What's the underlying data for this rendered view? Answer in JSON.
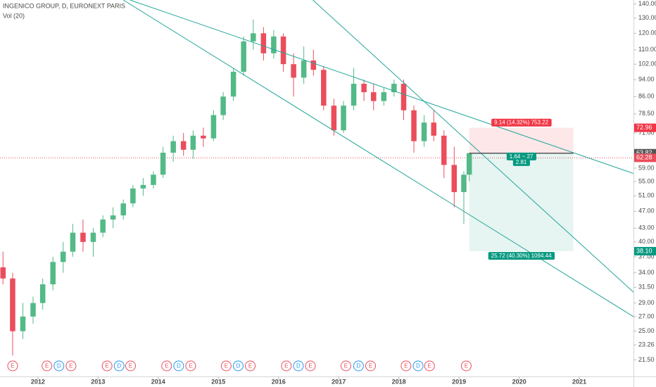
{
  "chart_data": {
    "type": "candlestick",
    "title": "INGENICO GROUP, D, EURONEXT PARIS",
    "subtitle": "Vol (20)",
    "log_scale": true,
    "up_color": "#53b987",
    "down_color": "#eb4d5c",
    "xlim": [
      2011.37,
      2021.9
    ],
    "xticks": [
      2012,
      2013,
      2014,
      2015,
      2016,
      2017,
      2018,
      2019,
      2020,
      2021
    ],
    "ylim": [
      19.7,
      143
    ],
    "yticks": [
      {
        "value": 140,
        "label": "140.00"
      },
      {
        "value": 130,
        "label": "130.00"
      },
      {
        "value": 120,
        "label": "120.00"
      },
      {
        "value": 110,
        "label": "110.00"
      },
      {
        "value": 102,
        "label": "102.00"
      },
      {
        "value": 94,
        "label": "94.00"
      },
      {
        "value": 86,
        "label": "86.00"
      },
      {
        "value": 78.5,
        "label": "78.50"
      },
      {
        "value": 71,
        "label": "71.00"
      },
      {
        "value": 59,
        "label": "59.00"
      },
      {
        "value": 55,
        "label": "55.00"
      },
      {
        "value": 51,
        "label": "51.00"
      },
      {
        "value": 47,
        "label": "47.00"
      },
      {
        "value": 43,
        "label": "43.00"
      },
      {
        "value": 40,
        "label": "40.00"
      },
      {
        "value": 37,
        "label": "37.00"
      },
      {
        "value": 34,
        "label": "34.00"
      },
      {
        "value": 31.5,
        "label": "31.50"
      },
      {
        "value": 29,
        "label": "29.00"
      },
      {
        "value": 27,
        "label": "27.00"
      },
      {
        "value": 25,
        "label": "25.00"
      },
      {
        "value": 23.26,
        "label": "23.26"
      },
      {
        "value": 21.5,
        "label": "21.50"
      }
    ],
    "x": [
      2011.42,
      2011.58,
      2011.75,
      2011.92,
      2012.08,
      2012.25,
      2012.42,
      2012.58,
      2012.75,
      2012.92,
      2013.08,
      2013.25,
      2013.42,
      2013.58,
      2013.75,
      2013.92,
      2014.08,
      2014.25,
      2014.42,
      2014.58,
      2014.75,
      2014.92,
      2015.08,
      2015.25,
      2015.42,
      2015.58,
      2015.75,
      2015.92,
      2016.08,
      2016.25,
      2016.42,
      2016.58,
      2016.75,
      2016.92,
      2017.08,
      2017.25,
      2017.42,
      2017.58,
      2017.75,
      2017.92,
      2018.08,
      2018.25,
      2018.42,
      2018.58,
      2018.75,
      2018.92,
      2019.08,
      2019.17
    ],
    "open": [
      35,
      33,
      25,
      27,
      29,
      32,
      36,
      38,
      42,
      40,
      42,
      45,
      46,
      49,
      53,
      54,
      57,
      64,
      68,
      65,
      70,
      69,
      78,
      86,
      98,
      115,
      120,
      108,
      118,
      102,
      95,
      104,
      99,
      82,
      72,
      82,
      92,
      88,
      84,
      88,
      92,
      80,
      68,
      75,
      70,
      60,
      52,
      57
    ],
    "high": [
      38,
      34,
      29,
      30,
      33,
      37,
      40,
      44,
      45,
      43,
      46,
      48,
      50,
      54,
      56,
      58,
      66,
      70,
      71,
      72,
      73,
      80,
      88,
      100,
      118,
      129,
      124,
      122,
      120,
      108,
      112,
      110,
      101,
      85,
      84,
      100,
      94,
      92,
      90,
      94,
      94,
      82,
      78,
      80,
      72,
      66,
      58,
      64
    ],
    "low": [
      32,
      22,
      24,
      26,
      28,
      31,
      34,
      37,
      38,
      37,
      41,
      43,
      45,
      48,
      51,
      53,
      56,
      61,
      63,
      62,
      66,
      68,
      76,
      84,
      96,
      110,
      104,
      105,
      98,
      86,
      92,
      96,
      80,
      70,
      71,
      80,
      84,
      80,
      82,
      86,
      76,
      64,
      66,
      68,
      56,
      48,
      44,
      55
    ],
    "close": [
      33,
      25,
      27,
      29,
      32,
      36,
      38,
      42,
      40,
      42,
      45,
      46,
      49,
      53,
      54,
      57,
      64,
      68,
      65,
      70,
      69,
      78,
      86,
      98,
      115,
      120,
      108,
      118,
      102,
      95,
      104,
      99,
      82,
      72,
      82,
      92,
      88,
      84,
      88,
      92,
      80,
      68,
      75,
      70,
      60,
      52,
      57,
      63.82
    ],
    "trend_lines": [
      {
        "x": [
          2013.53,
          2022.27
        ],
        "y": [
          143,
          55.1
        ],
        "color": "#26a69a"
      },
      {
        "x": [
          2013.42,
          2022.27
        ],
        "y": [
          143,
          25.1
        ],
        "color": "#26a69a"
      },
      {
        "x": [
          2016.57,
          2022.27
        ],
        "y": [
          143,
          27.6
        ],
        "color": "#26a69a"
      }
    ],
    "last_price": 62.28,
    "position": {
      "x": [
        2019.17,
        2020.9
      ],
      "entry": 63.82,
      "stop": 72.96,
      "target": {
        "value": 38.1,
        "label": "38.10"
      },
      "stop_label": "9.14 (14.32%) 753.22",
      "entry_label": "1.64 ~ 27",
      "entry_sub_label": "2.81",
      "target_label": "25.72 (40.30%) 1094.44"
    },
    "events": [
      {
        "x": 2011.58,
        "label": "E"
      },
      {
        "x": 2012.15,
        "label": "E"
      },
      {
        "x": 2012.35,
        "label": "D"
      },
      {
        "x": 2012.55,
        "label": "E"
      },
      {
        "x": 2013.15,
        "label": "E"
      },
      {
        "x": 2013.35,
        "label": "D"
      },
      {
        "x": 2013.54,
        "label": "E"
      },
      {
        "x": 2014.14,
        "label": "E"
      },
      {
        "x": 2014.34,
        "label": "D"
      },
      {
        "x": 2014.54,
        "label": "E"
      },
      {
        "x": 2015.13,
        "label": "E"
      },
      {
        "x": 2015.33,
        "label": "D"
      },
      {
        "x": 2015.53,
        "label": "E"
      },
      {
        "x": 2016.13,
        "label": "E"
      },
      {
        "x": 2016.33,
        "label": "D"
      },
      {
        "x": 2016.53,
        "label": "E"
      },
      {
        "x": 2017.12,
        "label": "E"
      },
      {
        "x": 2017.33,
        "label": "D"
      },
      {
        "x": 2017.53,
        "label": "E"
      },
      {
        "x": 2018.12,
        "label": "E"
      },
      {
        "x": 2018.32,
        "label": "D"
      },
      {
        "x": 2018.51,
        "label": "E"
      },
      {
        "x": 2019.12,
        "label": "E"
      }
    ]
  }
}
